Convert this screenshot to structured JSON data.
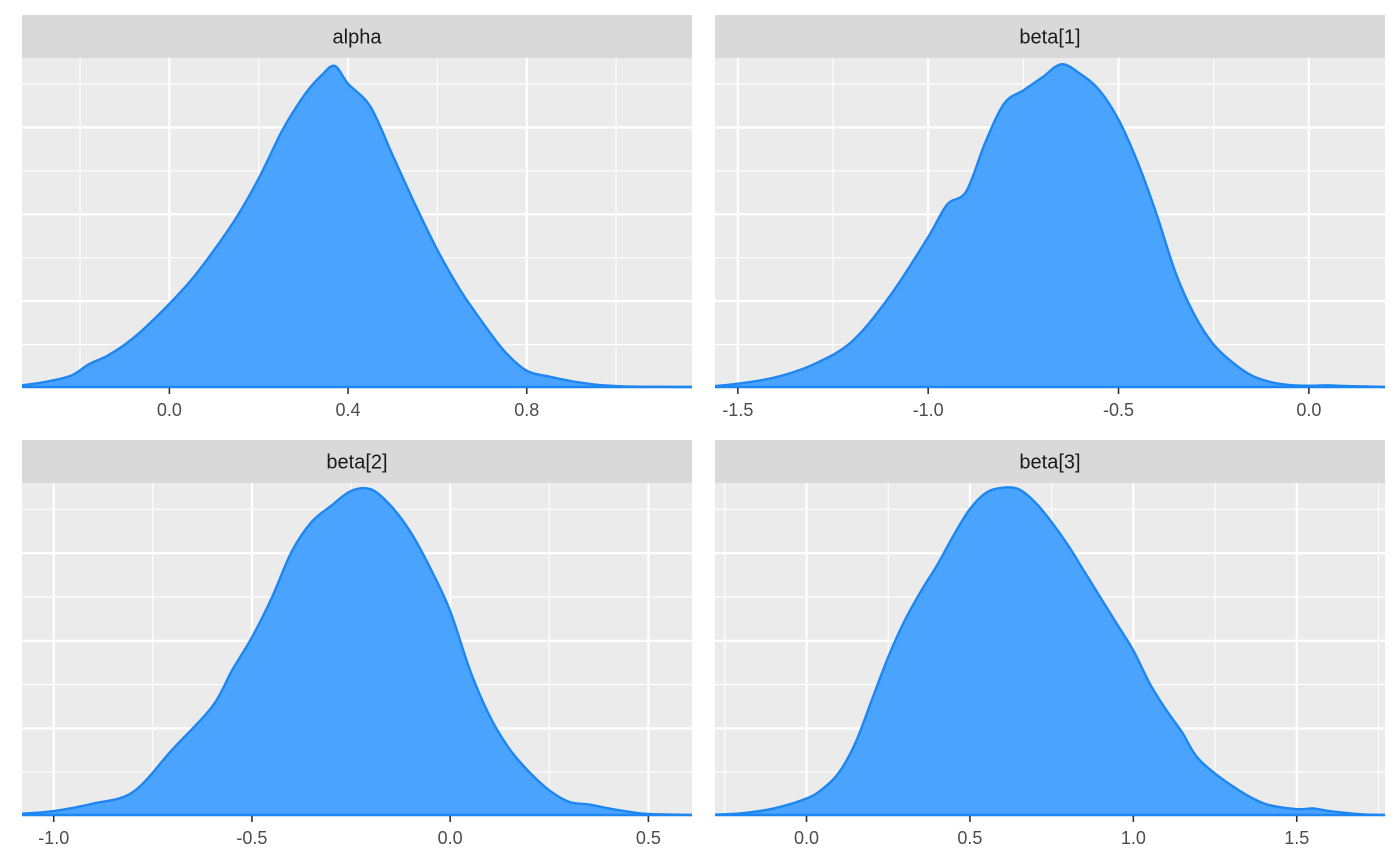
{
  "chart_data": [
    {
      "type": "area",
      "title": "alpha",
      "xlabel": "",
      "ylabel": "",
      "xlim": [
        -0.33,
        1.17
      ],
      "ylim": [
        0,
        1
      ],
      "x_ticks": [
        0.0,
        0.4,
        0.8
      ],
      "x_tick_labels": [
        "0.0",
        "0.4",
        "0.8"
      ],
      "x": [
        -0.33,
        -0.28,
        -0.22,
        -0.18,
        -0.14,
        -0.1,
        -0.06,
        0.0,
        0.05,
        0.1,
        0.15,
        0.2,
        0.25,
        0.28,
        0.31,
        0.34,
        0.37,
        0.4,
        0.45,
        0.5,
        0.55,
        0.6,
        0.65,
        0.7,
        0.75,
        0.8,
        0.85,
        0.9,
        0.95,
        1.0,
        1.05,
        1.1,
        1.17
      ],
      "y": [
        0.005,
        0.015,
        0.035,
        0.07,
        0.095,
        0.13,
        0.175,
        0.255,
        0.33,
        0.42,
        0.52,
        0.64,
        0.78,
        0.85,
        0.91,
        0.955,
        0.985,
        0.93,
        0.86,
        0.71,
        0.56,
        0.42,
        0.3,
        0.2,
        0.11,
        0.05,
        0.032,
        0.018,
        0.008,
        0.003,
        0.001,
        0.0005,
        0.0
      ]
    },
    {
      "type": "area",
      "title": "beta[1]",
      "xlabel": "",
      "ylabel": "",
      "xlim": [
        -1.56,
        0.2
      ],
      "ylim": [
        0,
        1
      ],
      "x_ticks": [
        -1.5,
        -1.0,
        -0.5,
        0.0
      ],
      "x_tick_labels": [
        "-1.5",
        "-1.0",
        "-0.5",
        "0.0"
      ],
      "x": [
        -1.56,
        -1.5,
        -1.4,
        -1.3,
        -1.2,
        -1.1,
        -1.0,
        -0.95,
        -0.9,
        -0.85,
        -0.8,
        -0.75,
        -0.7,
        -0.65,
        -0.6,
        -0.55,
        -0.5,
        -0.45,
        -0.4,
        -0.35,
        -0.3,
        -0.25,
        -0.2,
        -0.15,
        -0.1,
        -0.05,
        0.0,
        0.05,
        0.1,
        0.2
      ],
      "y": [
        0.003,
        0.01,
        0.03,
        0.07,
        0.14,
        0.28,
        0.46,
        0.56,
        0.6,
        0.75,
        0.87,
        0.91,
        0.95,
        0.99,
        0.96,
        0.91,
        0.82,
        0.69,
        0.53,
        0.35,
        0.22,
        0.13,
        0.075,
        0.035,
        0.015,
        0.006,
        0.004,
        0.005,
        0.003,
        0.0
      ]
    },
    {
      "type": "area",
      "title": "beta[2]",
      "xlabel": "",
      "ylabel": "",
      "xlim": [
        -1.08,
        0.61
      ],
      "ylim": [
        0,
        1
      ],
      "x_ticks": [
        -1.0,
        -0.5,
        0.0,
        0.5
      ],
      "x_tick_labels": [
        "-1.0",
        "-0.5",
        "0.0",
        "0.5"
      ],
      "x": [
        -1.08,
        -1.0,
        -0.9,
        -0.8,
        -0.7,
        -0.6,
        -0.55,
        -0.5,
        -0.45,
        -0.4,
        -0.35,
        -0.3,
        -0.25,
        -0.2,
        -0.15,
        -0.1,
        -0.05,
        0.0,
        0.05,
        0.1,
        0.15,
        0.2,
        0.25,
        0.3,
        0.35,
        0.4,
        0.45,
        0.5,
        0.61
      ],
      "y": [
        0.004,
        0.012,
        0.035,
        0.07,
        0.2,
        0.33,
        0.44,
        0.54,
        0.66,
        0.8,
        0.89,
        0.94,
        0.985,
        0.99,
        0.94,
        0.86,
        0.75,
        0.62,
        0.44,
        0.3,
        0.2,
        0.13,
        0.075,
        0.04,
        0.032,
        0.02,
        0.01,
        0.003,
        0.0
      ]
    },
    {
      "type": "area",
      "title": "beta[3]",
      "xlabel": "",
      "ylabel": "",
      "xlim": [
        -0.28,
        1.77
      ],
      "ylim": [
        0,
        1
      ],
      "x_ticks": [
        0.0,
        0.5,
        1.0,
        1.5
      ],
      "x_tick_labels": [
        "0.0",
        "0.5",
        "1.0",
        "1.5"
      ],
      "x": [
        -0.28,
        -0.2,
        -0.1,
        0.0,
        0.05,
        0.1,
        0.15,
        0.2,
        0.25,
        0.3,
        0.35,
        0.4,
        0.45,
        0.5,
        0.55,
        0.6,
        0.65,
        0.7,
        0.75,
        0.8,
        0.85,
        0.9,
        0.95,
        1.0,
        1.05,
        1.1,
        1.15,
        1.2,
        1.3,
        1.4,
        1.5,
        1.55,
        1.6,
        1.7,
        1.77
      ],
      "y": [
        0.001,
        0.005,
        0.02,
        0.05,
        0.08,
        0.13,
        0.22,
        0.35,
        0.48,
        0.59,
        0.68,
        0.76,
        0.85,
        0.93,
        0.98,
        0.995,
        0.99,
        0.95,
        0.89,
        0.82,
        0.74,
        0.66,
        0.58,
        0.5,
        0.4,
        0.32,
        0.25,
        0.17,
        0.09,
        0.035,
        0.018,
        0.02,
        0.012,
        0.002,
        0.0
      ]
    }
  ],
  "colors": {
    "fill": "#4aa4ff",
    "line": "#1e86f0",
    "panel": "#ebebeb",
    "strip": "#d9d9d9",
    "grid": "#ffffff",
    "tick_text": "#4d4d4d",
    "strip_text": "#1a1a1a"
  }
}
